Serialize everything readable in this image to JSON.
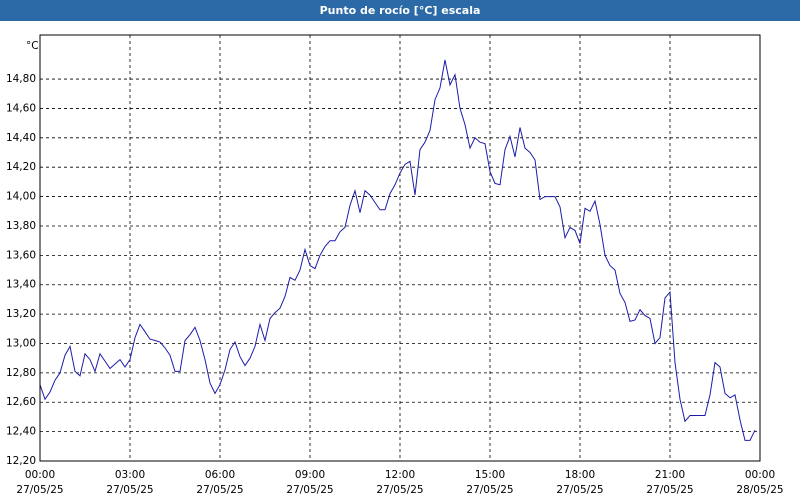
{
  "chart_data": {
    "type": "line",
    "title": "Punto de rocío [°C] escala",
    "y_label": "°C",
    "x": [
      0,
      10,
      20,
      30,
      40,
      50,
      60,
      70,
      80,
      90,
      100,
      110,
      120,
      130,
      140,
      150,
      160,
      170,
      180,
      190,
      200,
      210,
      220,
      230,
      240,
      250,
      260,
      270,
      280,
      290,
      300,
      310,
      320,
      330,
      340,
      350,
      360,
      370,
      380,
      390,
      400,
      410,
      420,
      430,
      440,
      450,
      460,
      470,
      480,
      490,
      500,
      510,
      520,
      530,
      540,
      550,
      560,
      570,
      580,
      590,
      600,
      610,
      620,
      630,
      640,
      650,
      660,
      670,
      680,
      690,
      700,
      710,
      720,
      730,
      740,
      750,
      760,
      770,
      780,
      790,
      800,
      810,
      820,
      830,
      840,
      850,
      860,
      870,
      880,
      890,
      900,
      910,
      920,
      930,
      940,
      950,
      960,
      970,
      980,
      990,
      1000,
      1010,
      1020,
      1030,
      1040,
      1050,
      1060,
      1070,
      1080,
      1090,
      1100,
      1110,
      1120,
      1130,
      1140,
      1150,
      1160,
      1170,
      1180,
      1190,
      1200,
      1210,
      1220,
      1230,
      1240,
      1250,
      1260,
      1270,
      1280,
      1290,
      1300,
      1310,
      1320,
      1330,
      1340,
      1350,
      1360,
      1370,
      1380,
      1390,
      1400,
      1410,
      1420,
      1430
    ],
    "series": [
      {
        "name": "Punto de rocío",
        "color": "#1c1ca8",
        "values": [
          12.72,
          12.62,
          12.67,
          12.75,
          12.8,
          12.92,
          12.98,
          12.81,
          12.78,
          12.93,
          12.89,
          12.81,
          12.93,
          12.88,
          12.83,
          12.86,
          12.89,
          12.84,
          12.89,
          13.04,
          13.13,
          13.08,
          13.03,
          13.02,
          13.01,
          12.97,
          12.92,
          12.81,
          12.81,
          13.02,
          13.06,
          13.11,
          13.02,
          12.89,
          12.73,
          12.66,
          12.72,
          12.82,
          12.96,
          13.01,
          12.91,
          12.85,
          12.9,
          12.98,
          13.13,
          13.02,
          13.17,
          13.21,
          13.24,
          13.32,
          13.45,
          13.43,
          13.5,
          13.64,
          13.53,
          13.51,
          13.6,
          13.66,
          13.7,
          13.7,
          13.76,
          13.79,
          13.94,
          14.04,
          13.89,
          14.04,
          14.01,
          13.96,
          13.91,
          13.91,
          14.02,
          14.08,
          14.16,
          14.22,
          14.24,
          14.01,
          14.32,
          14.37,
          14.45,
          14.66,
          14.74,
          14.93,
          14.76,
          14.83,
          14.6,
          14.49,
          14.33,
          14.4,
          14.37,
          14.36,
          14.17,
          14.09,
          14.08,
          14.32,
          14.41,
          14.27,
          14.47,
          14.33,
          14.3,
          14.25,
          13.98,
          14.0,
          14.0,
          14.0,
          13.93,
          13.72,
          13.79,
          13.77,
          13.68,
          13.92,
          13.9,
          13.97,
          13.81,
          13.6,
          13.53,
          13.5,
          13.34,
          13.28,
          13.15,
          13.16,
          13.23,
          13.19,
          13.17,
          13.0,
          13.04,
          13.31,
          13.35,
          12.87,
          12.62,
          12.47,
          12.51,
          12.51,
          12.51,
          12.51,
          12.65,
          12.87,
          12.84,
          12.66,
          12.63,
          12.65,
          12.48,
          12.34,
          12.34,
          12.41
        ]
      }
    ],
    "xlim": [
      0,
      1440
    ],
    "xticks": [
      {
        "value": 0,
        "label": "00:00",
        "date": "27/05/25"
      },
      {
        "value": 180,
        "label": "03:00",
        "date": "27/05/25"
      },
      {
        "value": 360,
        "label": "06:00",
        "date": "27/05/25"
      },
      {
        "value": 540,
        "label": "09:00",
        "date": "27/05/25"
      },
      {
        "value": 720,
        "label": "12:00",
        "date": "27/05/25"
      },
      {
        "value": 900,
        "label": "15:00",
        "date": "27/05/25"
      },
      {
        "value": 1080,
        "label": "18:00",
        "date": "27/05/25"
      },
      {
        "value": 1260,
        "label": "21:00",
        "date": "27/05/25"
      },
      {
        "value": 1440,
        "label": "00:00",
        "date": "28/05/25"
      }
    ],
    "ylim": [
      12.2,
      15.1
    ],
    "yticks": [
      {
        "value": 12.2,
        "label": "12,20"
      },
      {
        "value": 12.4,
        "label": "12,40"
      },
      {
        "value": 12.6,
        "label": "12,60"
      },
      {
        "value": 12.8,
        "label": "12,80"
      },
      {
        "value": 13.0,
        "label": "13,00"
      },
      {
        "value": 13.2,
        "label": "13,20"
      },
      {
        "value": 13.4,
        "label": "13,40"
      },
      {
        "value": 13.6,
        "label": "13,60"
      },
      {
        "value": 13.8,
        "label": "13,80"
      },
      {
        "value": 14.0,
        "label": "14,00"
      },
      {
        "value": 14.2,
        "label": "14,20"
      },
      {
        "value": 14.4,
        "label": "14,40"
      },
      {
        "value": 14.6,
        "label": "14,60"
      },
      {
        "value": 14.8,
        "label": "14,80"
      }
    ],
    "grid": true
  }
}
